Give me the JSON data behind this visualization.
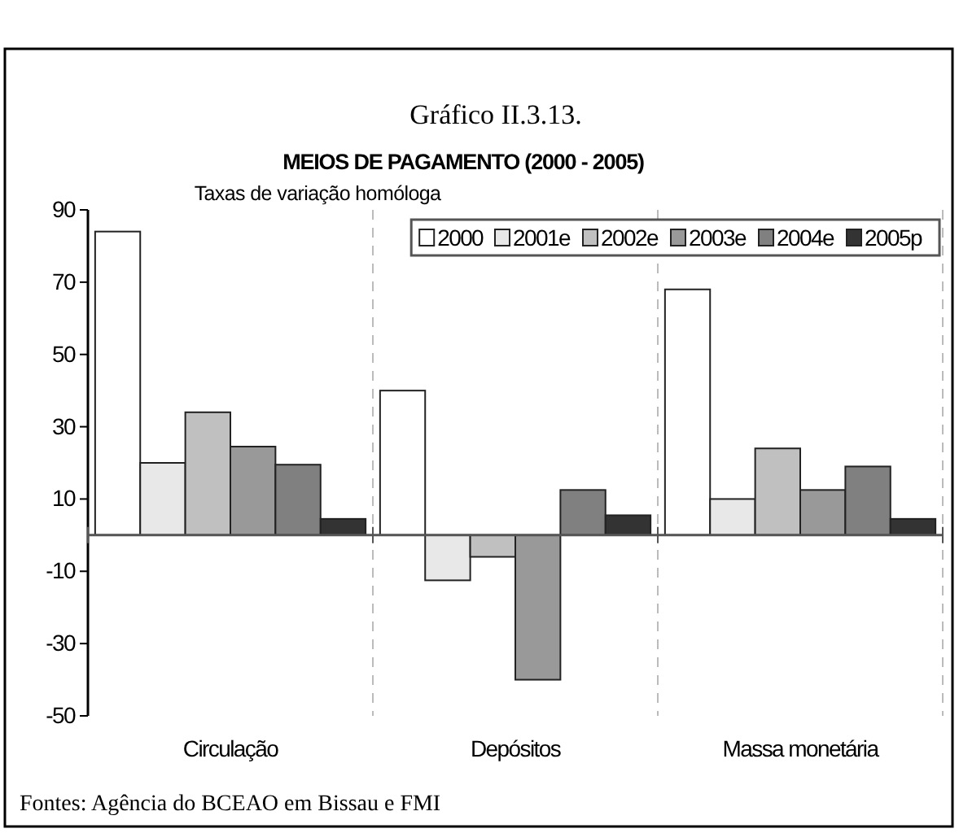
{
  "chart_data": {
    "type": "bar",
    "title": "Gráfico II.3.13.",
    "subtitle": "MEIOS DE PAGAMENTO (2000 - 2005)",
    "ylabel": "Taxas de variação homóloga",
    "categories": [
      "Circulação",
      "Depósitos",
      "Massa monetária"
    ],
    "series": [
      {
        "name": "2000",
        "color": "#ffffff",
        "values": [
          84,
          40,
          68
        ]
      },
      {
        "name": "2001e",
        "color": "#e8e8e8",
        "values": [
          20,
          -12.5,
          10
        ]
      },
      {
        "name": "2002e",
        "color": "#c0c0c0",
        "values": [
          34,
          -6,
          24
        ]
      },
      {
        "name": "2003e",
        "color": "#999999",
        "values": [
          24.5,
          -40,
          12.5
        ]
      },
      {
        "name": "2004e",
        "color": "#808080",
        "values": [
          19.5,
          12.5,
          19
        ]
      },
      {
        "name": "2005p",
        "color": "#333333",
        "values": [
          4.5,
          5.5,
          4.5
        ]
      }
    ],
    "ylim": [
      -50,
      90
    ],
    "yticks": [
      -50,
      -30,
      -10,
      10,
      30,
      50,
      70,
      90
    ],
    "grid": "x",
    "legend": "top right",
    "annotations": [
      "Fontes: Agência do BCEAO em Bissau e FMI"
    ]
  }
}
